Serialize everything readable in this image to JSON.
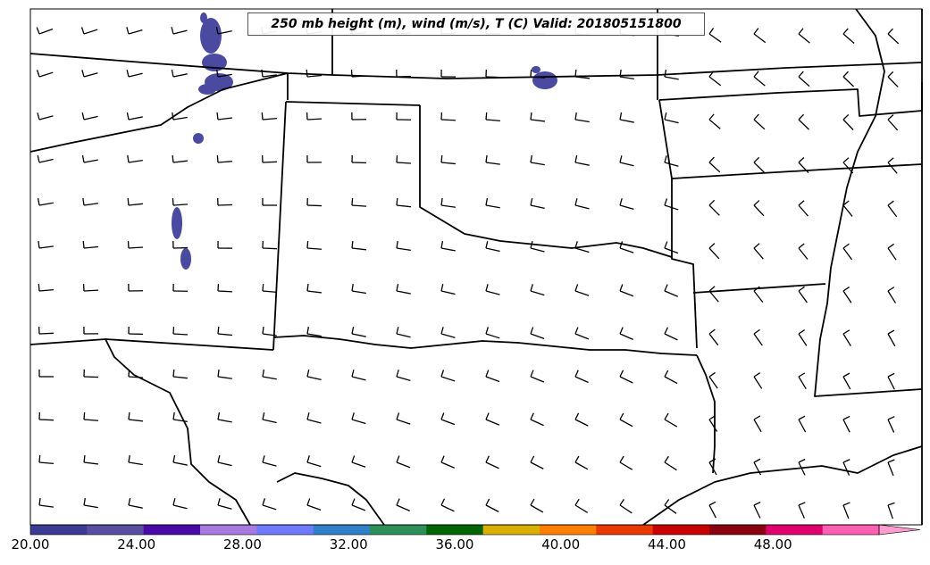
{
  "title": "250 mb height (m), wind (m/s), T (C) Valid: 201805151800",
  "colorbar": {
    "min": 20,
    "max": 52,
    "tick_labels": [
      "20.00",
      "24.00",
      "28.00",
      "32.00",
      "36.00",
      "40.00",
      "44.00",
      "48.00"
    ],
    "tick_values": [
      20,
      24,
      28,
      32,
      36,
      40,
      44,
      48
    ],
    "colors": [
      "#3b3b94",
      "#5a4ea3",
      "#4a0aa8",
      "#a77ae0",
      "#6f7bff",
      "#2f7fc9",
      "#2f8f5a",
      "#006400",
      "#d9b000",
      "#ff8000",
      "#e83a00",
      "#c80000",
      "#8b0010",
      "#e0006e",
      "#ff5fb0",
      "#ff9cd0"
    ]
  },
  "shaded_color": "#4a4aa0",
  "wind_barbs": {
    "note_units": "m/s",
    "rows": 12,
    "cols": 20
  }
}
